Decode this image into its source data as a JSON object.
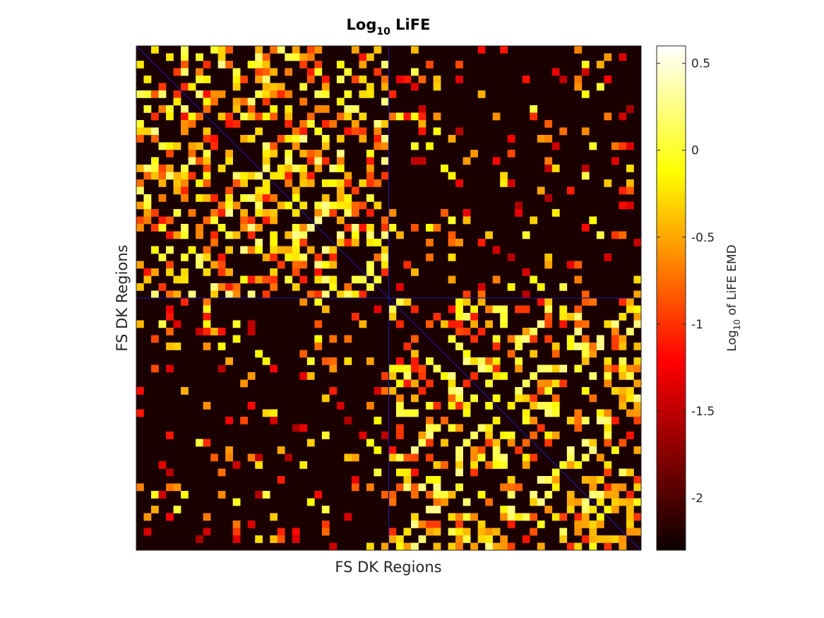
{
  "chart_data": {
    "type": "heatmap",
    "title": {
      "base": "Log",
      "sub": "10",
      "rest": " LiFE"
    },
    "xlabel": "FS DK Regions",
    "ylabel": "FS DK Regions",
    "n_regions": 68,
    "hemisphere_split": 34,
    "colormap": "hot",
    "colors": {
      "background": "#1a0000",
      "divider": "#1a1a8c",
      "axis": "#262626"
    },
    "colorbar": {
      "label": {
        "base": "Log",
        "sub": "10",
        "rest": " of LiFE EMD"
      },
      "range": [
        -2.3,
        0.6
      ],
      "ticks": [
        {
          "value": 0.5,
          "label": "0.5"
        },
        {
          "value": 0,
          "label": "0"
        },
        {
          "value": -0.5,
          "label": "-0.5"
        },
        {
          "value": -1,
          "label": "-1"
        },
        {
          "value": -1.5,
          "label": "-1.5"
        },
        {
          "value": -2,
          "label": "-2"
        }
      ]
    },
    "matrix_note": "68x68 symmetric matrix of log10 LiFE EMD values; dense within-hemisphere blocks, sparse between-hemisphere blocks. Cell values are estimated and generated procedurally."
  }
}
